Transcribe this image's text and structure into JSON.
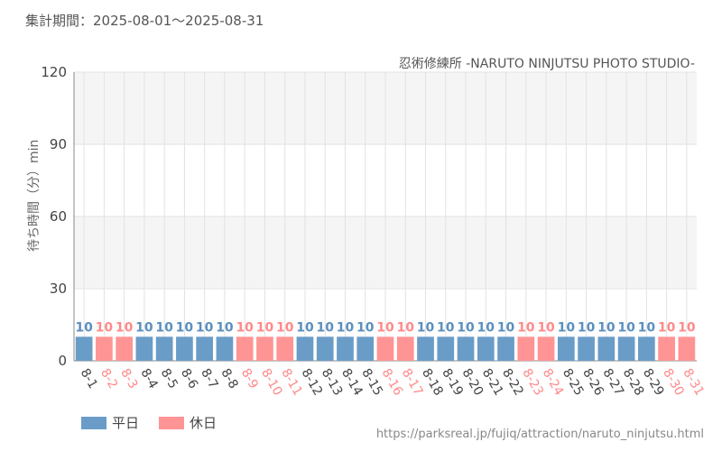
{
  "header": {
    "period_text": "集計期間：2025-08-01～2025-08-31",
    "source_text": "忍術修練所 -NARUTO NINJUTSU PHOTO STUDIO-"
  },
  "footer": {
    "url": "https://parksreal.jp/fujiq/attraction/naruto_ninjutsu.html"
  },
  "colors": {
    "weekday": "#6a9cc8",
    "holiday": "#ff9494",
    "weekday_label": "#5b8fbf",
    "holiday_label": "#ff8a8a",
    "axis_text": "#444444",
    "band": "#f5f5f5",
    "grid": "#e2e2e2"
  },
  "chart_data": {
    "type": "bar",
    "ylabel": "待ち時間（分）min",
    "ylim": [
      0,
      120
    ],
    "yticks": [
      0,
      30,
      60,
      90,
      120
    ],
    "grid": true,
    "legend_position": "bottom-left",
    "categories": [
      "8-1",
      "8-2",
      "8-3",
      "8-4",
      "8-5",
      "8-6",
      "8-7",
      "8-8",
      "8-9",
      "8-10",
      "8-11",
      "8-12",
      "8-13",
      "8-14",
      "8-15",
      "8-16",
      "8-17",
      "8-18",
      "8-19",
      "8-20",
      "8-21",
      "8-22",
      "8-23",
      "8-24",
      "8-25",
      "8-26",
      "8-27",
      "8-28",
      "8-29",
      "8-30",
      "8-31"
    ],
    "values": [
      10,
      10,
      10,
      10,
      10,
      10,
      10,
      10,
      10,
      10,
      10,
      10,
      10,
      10,
      10,
      10,
      10,
      10,
      10,
      10,
      10,
      10,
      10,
      10,
      10,
      10,
      10,
      10,
      10,
      10,
      10
    ],
    "day_type": [
      "weekday",
      "holiday",
      "holiday",
      "weekday",
      "weekday",
      "weekday",
      "weekday",
      "weekday",
      "holiday",
      "holiday",
      "holiday",
      "weekday",
      "weekday",
      "weekday",
      "weekday",
      "holiday",
      "holiday",
      "weekday",
      "weekday",
      "weekday",
      "weekday",
      "weekday",
      "holiday",
      "holiday",
      "weekday",
      "weekday",
      "weekday",
      "weekday",
      "weekday",
      "holiday",
      "holiday"
    ],
    "legend": [
      {
        "key": "weekday",
        "label": "平日"
      },
      {
        "key": "holiday",
        "label": "休日"
      }
    ]
  }
}
